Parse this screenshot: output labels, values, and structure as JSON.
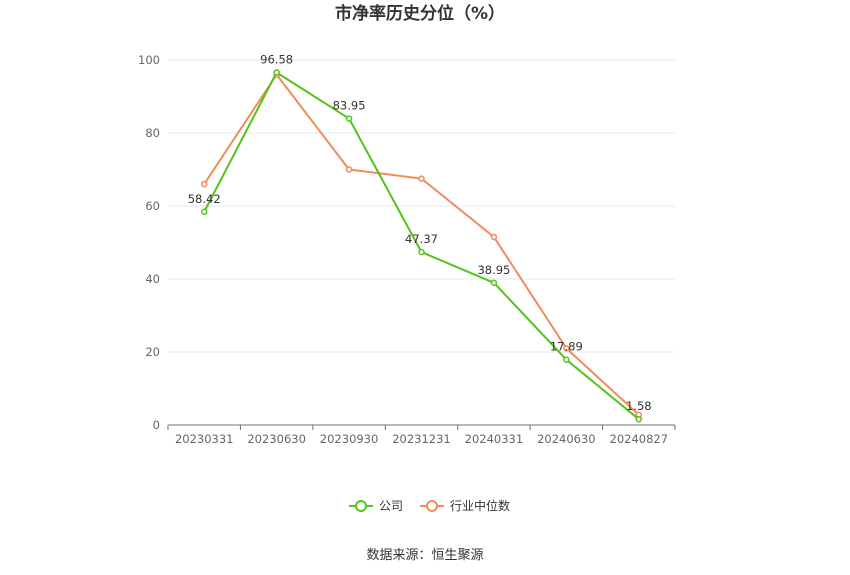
{
  "chart_data": {
    "type": "line",
    "title": "市净率历史分位（%）",
    "categories": [
      "20230331",
      "20230630",
      "20230930",
      "20231231",
      "20240331",
      "20240630",
      "20240827"
    ],
    "ylim": [
      0,
      100
    ],
    "yticks": [
      "0",
      "20",
      "40",
      "60",
      "80",
      "100"
    ],
    "grid": true,
    "legend_position": "bottom",
    "series": [
      {
        "name": "公司",
        "color": "#52c41a",
        "values": [
          58.42,
          96.58,
          83.95,
          47.37,
          38.95,
          17.89,
          1.58
        ],
        "labels": [
          "58.42",
          "96.58",
          "83.95",
          "47.37",
          "38.95",
          "17.89",
          "1.58"
        ]
      },
      {
        "name": "行业中位数",
        "color": "#f08c5a",
        "values": [
          66,
          96,
          70,
          67.5,
          51.5,
          21,
          2.8
        ]
      }
    ]
  },
  "source": "数据来源：恒生聚源"
}
